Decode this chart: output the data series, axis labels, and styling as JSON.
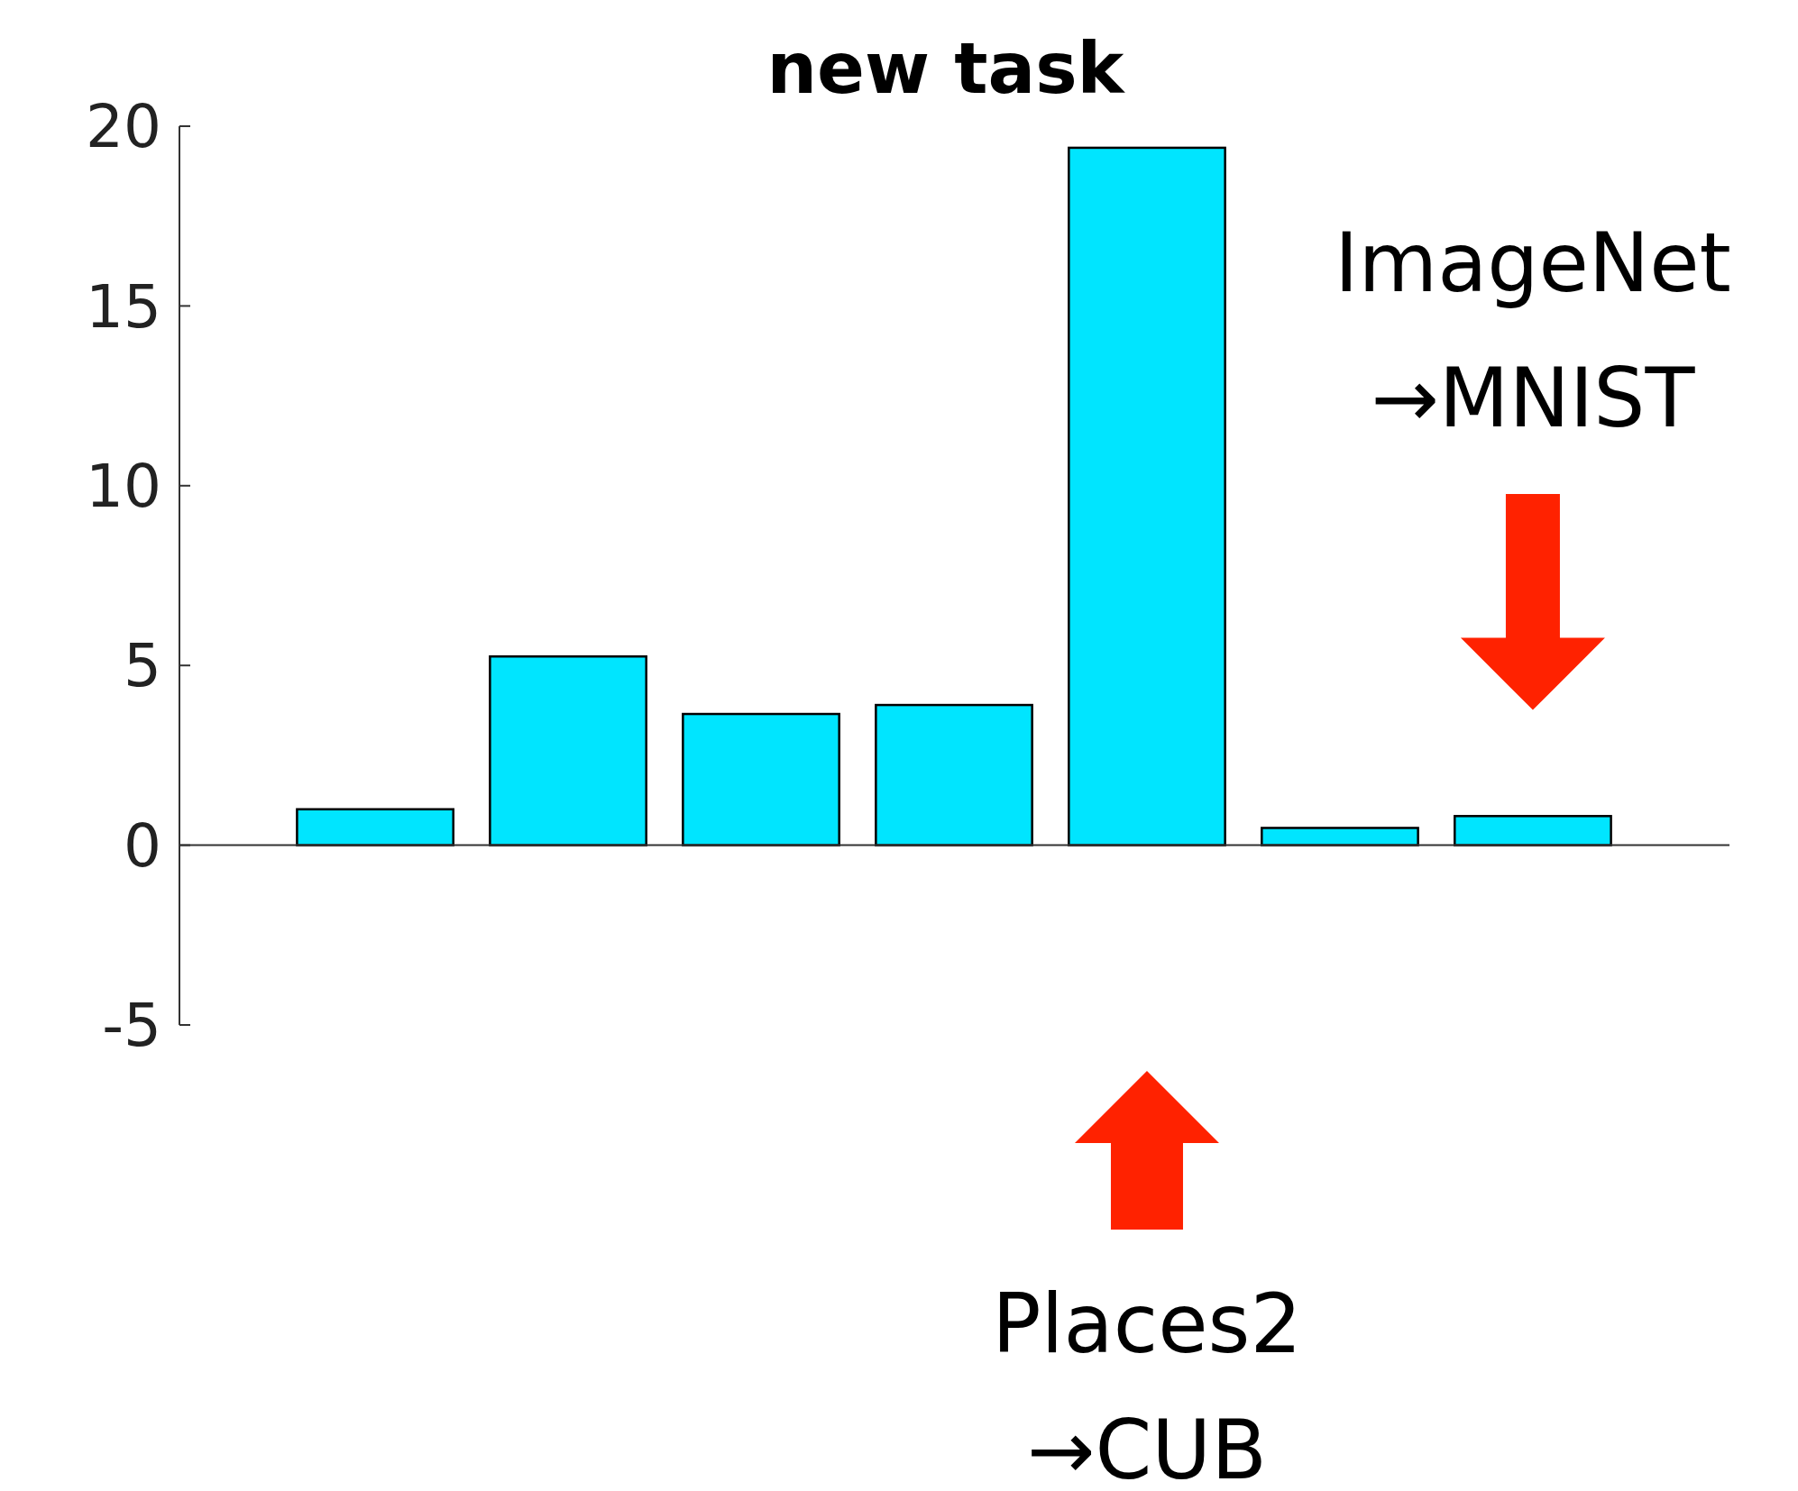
{
  "chart_data": {
    "type": "bar",
    "title": "new task",
    "categories": [
      null,
      null,
      null,
      null,
      null,
      null,
      null
    ],
    "values": [
      1.0,
      5.25,
      3.65,
      3.9,
      19.4,
      0.48,
      0.81
    ],
    "color": "#00e5ff",
    "ylim": [
      -5,
      20
    ],
    "yticks": [
      -5,
      0,
      5,
      10,
      15,
      20
    ],
    "tick_labels": "y",
    "annotations": [
      "ImageNet\n→MNIST",
      "Places2\n→CUB"
    ]
  }
}
